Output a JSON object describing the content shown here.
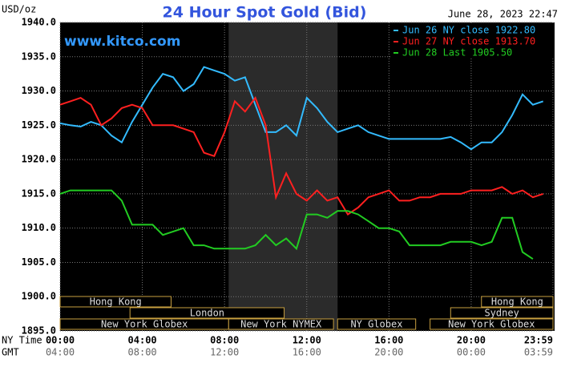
{
  "chart_data": {
    "type": "line",
    "title": "24 Hour Spot Gold (Bid)",
    "timestamp": "June 28, 2023 22:47",
    "unit_label": "USD/oz",
    "watermark": "www.kitco.com",
    "x_row_labels": [
      "NY Time",
      "GMT"
    ],
    "x": [
      0,
      0.5,
      1,
      1.5,
      2,
      2.5,
      3,
      3.5,
      4,
      4.5,
      5,
      5.5,
      6,
      6.5,
      7,
      7.5,
      8,
      8.5,
      9,
      9.5,
      10,
      10.5,
      11,
      11.5,
      12,
      12.5,
      13,
      13.5,
      14,
      14.5,
      15,
      15.5,
      16,
      16.5,
      17,
      17.5,
      18,
      18.5,
      19,
      19.5,
      20,
      20.5,
      21,
      21.5,
      22,
      22.5,
      23,
      23.5
    ],
    "xlim": [
      0,
      23.98
    ],
    "xticks": [
      {
        "value": 0,
        "label": "00:00"
      },
      {
        "value": 4,
        "label": "04:00"
      },
      {
        "value": 8,
        "label": "08:00"
      },
      {
        "value": 12,
        "label": "12:00"
      },
      {
        "value": 16,
        "label": "16:00"
      },
      {
        "value": 20,
        "label": "20:00"
      },
      {
        "value": 23.98,
        "label": "23:59"
      }
    ],
    "gmt_ticks": [
      {
        "value": 0,
        "label": "04:00"
      },
      {
        "value": 4,
        "label": "08:00"
      },
      {
        "value": 8,
        "label": "12:00"
      },
      {
        "value": 12,
        "label": "16:00"
      },
      {
        "value": 16,
        "label": "20:00"
      },
      {
        "value": 20,
        "label": "00:00"
      },
      {
        "value": 23.98,
        "label": "03:59"
      }
    ],
    "ylim": [
      1895,
      1940
    ],
    "yticks": [
      {
        "value": 1895,
        "label": "1895.0"
      },
      {
        "value": 1900,
        "label": "1900.0"
      },
      {
        "value": 1905,
        "label": "1905.0"
      },
      {
        "value": 1910,
        "label": "1910.0"
      },
      {
        "value": 1915,
        "label": "1915.0"
      },
      {
        "value": 1920,
        "label": "1920.0"
      },
      {
        "value": 1925,
        "label": "1925.0"
      },
      {
        "value": 1930,
        "label": "1930.0"
      },
      {
        "value": 1935,
        "label": "1935.0"
      },
      {
        "value": 1940,
        "label": "1940.0"
      }
    ],
    "grid": true,
    "highlight_x": [
      8.2,
      13.5
    ],
    "series": [
      {
        "name": "Jun 26 NY close 1922.80",
        "color": "#33bbff",
        "values": [
          1925.3,
          1925,
          1924.8,
          1925.5,
          1925,
          1923.5,
          1922.5,
          1925.5,
          1928,
          1930.5,
          1932.5,
          1932,
          1930,
          1931,
          1933.5,
          1933,
          1932.5,
          1931.5,
          1932,
          1928,
          1924,
          1924,
          1925,
          1923.5,
          1929,
          1927.5,
          1925.5,
          1924,
          1924.5,
          1925,
          1924,
          1923.5,
          1923,
          1923,
          1923,
          1923,
          1923,
          1923,
          1923.3,
          1922.5,
          1921.5,
          1922.5,
          1922.5,
          1924,
          1926.5,
          1929.5,
          1928,
          1928.5
        ]
      },
      {
        "name": "Jun 27 NY close 1913.70",
        "color": "#ff2020",
        "values": [
          1928,
          1928.5,
          1929,
          1928,
          1925,
          1926,
          1927.5,
          1928,
          1927.5,
          1925,
          1925,
          1925,
          1924.5,
          1924,
          1921,
          1920.5,
          1924,
          1928.5,
          1927,
          1929,
          1925,
          1914.5,
          1918,
          1915,
          1914,
          1915.5,
          1914,
          1914.5,
          1912,
          1913,
          1914.5,
          1915,
          1915.5,
          1914,
          1914,
          1914.5,
          1914.5,
          1915,
          1915,
          1915,
          1915.5,
          1915.5,
          1915.5,
          1916,
          1915,
          1915.5,
          1914.5,
          1915
        ]
      },
      {
        "name": "Jun 28 Last 1905.50",
        "color": "#22cc22",
        "values": [
          1915,
          1915.5,
          1915.5,
          1915.5,
          1915.5,
          1915.5,
          1914,
          1910.5,
          1910.5,
          1910.5,
          1909,
          1909.5,
          1910,
          1907.5,
          1907.5,
          1907,
          1907,
          1907,
          1907,
          1907.5,
          1909,
          1907.5,
          1908.5,
          1907,
          1912,
          1912,
          1911.5,
          1912.5,
          1912.5,
          1912,
          1911,
          1910,
          1910,
          1909.5,
          1907.5,
          1907.5,
          1907.5,
          1907.5,
          1908,
          1908,
          1908,
          1907.5,
          1908,
          1911.5,
          1911.5,
          1906.5,
          1905.5,
          null
        ]
      }
    ],
    "sessions": [
      {
        "label": "Hong Kong",
        "row": 0,
        "start": 0,
        "end": 5.4
      },
      {
        "label": "Hong Kong",
        "row": 0,
        "start": 20.5,
        "end": 23.98
      },
      {
        "label": "London",
        "row": 1,
        "start": 3.4,
        "end": 10.9
      },
      {
        "label": "Sydney",
        "row": 1,
        "start": 19,
        "end": 23.98
      },
      {
        "label": "New York Globex",
        "row": 2,
        "start": 0,
        "end": 8.2
      },
      {
        "label": "New York NYMEX",
        "row": 2,
        "start": 8.2,
        "end": 13.3
      },
      {
        "label": "NY Globex",
        "row": 2,
        "start": 13.5,
        "end": 17.3
      },
      {
        "label": "New York Globex",
        "row": 2,
        "start": 18,
        "end": 23.98
      }
    ]
  }
}
